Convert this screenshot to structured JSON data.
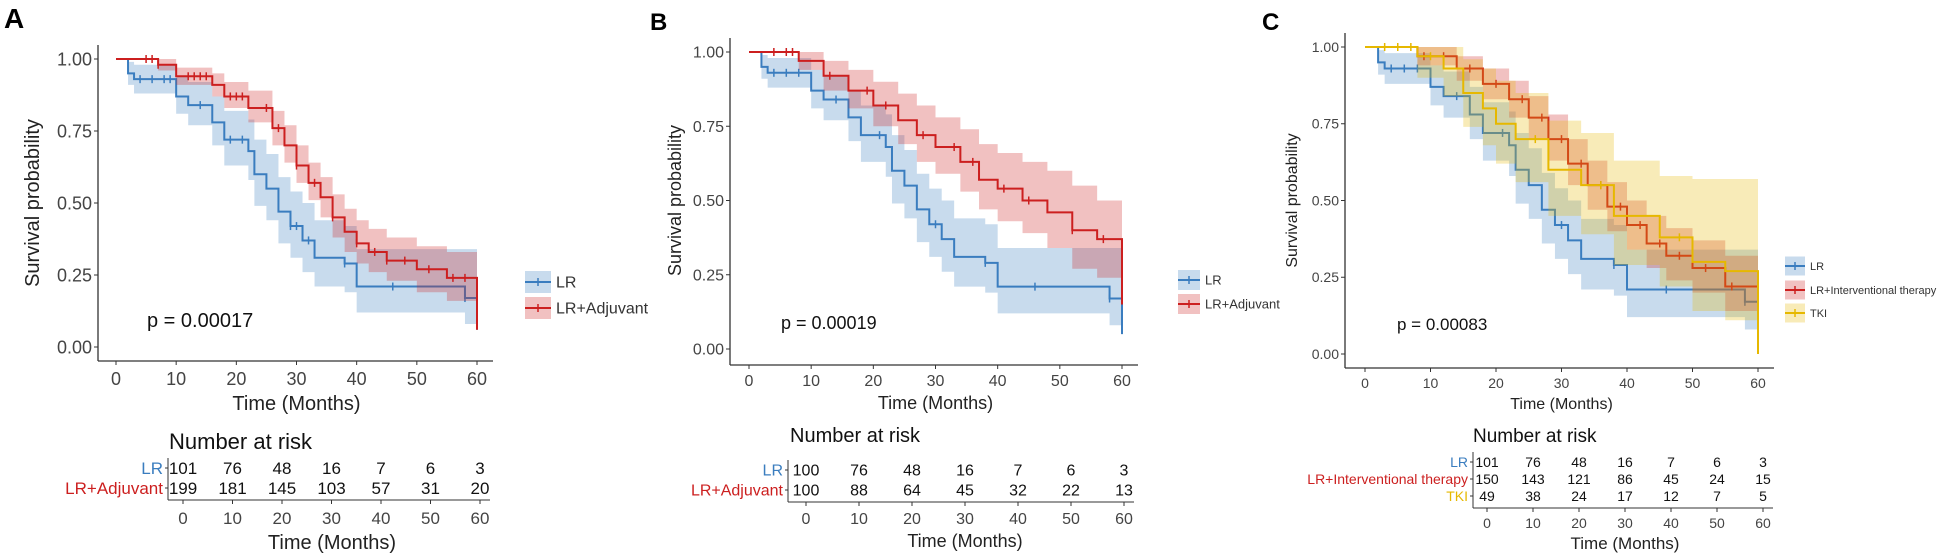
{
  "colors": {
    "LR": "#3a7dbf",
    "LR+Adjuvant": "#cc1f1f",
    "LR+Interventional therapy": "#cc1f1f",
    "TKI": "#e6b800",
    "axis": "#333333"
  },
  "chart_data": [
    {
      "type": "line",
      "panel_label": "A",
      "ylabel": "Survival probability",
      "xlabel": "Time (Months)",
      "xlim": [
        0,
        60
      ],
      "ylim": [
        0,
        1
      ],
      "xticks": [
        "0",
        "10",
        "20",
        "30",
        "40",
        "50",
        "60"
      ],
      "yticks": [
        "0.00",
        "0.25",
        "0.50",
        "0.75",
        "1.00"
      ],
      "grid": false,
      "legend": "right",
      "pvalue": "p = 0.00017",
      "series": [
        {
          "name": "LR",
          "x": [
            0,
            2,
            3,
            10,
            12,
            16,
            18,
            22,
            23,
            25,
            27,
            29,
            31,
            33,
            38,
            40,
            58,
            60
          ],
          "y": [
            1,
            0.95,
            0.93,
            0.87,
            0.84,
            0.78,
            0.72,
            0.68,
            0.6,
            0.55,
            0.47,
            0.42,
            0.37,
            0.31,
            0.29,
            0.21,
            0.17,
            0.06
          ],
          "lower": [
            1,
            0.91,
            0.88,
            0.81,
            0.77,
            0.7,
            0.63,
            0.58,
            0.49,
            0.44,
            0.36,
            0.31,
            0.26,
            0.21,
            0.19,
            0.12,
            0.08,
            0.01
          ],
          "upper": [
            1,
            0.99,
            0.98,
            0.94,
            0.92,
            0.87,
            0.82,
            0.79,
            0.72,
            0.67,
            0.59,
            0.54,
            0.5,
            0.44,
            0.42,
            0.34,
            0.34,
            0.34
          ],
          "censor": [
            4,
            6,
            8,
            9,
            14,
            19,
            21,
            29,
            30,
            32,
            38,
            46,
            58
          ]
        },
        {
          "name": "LR+Adjuvant",
          "x": [
            0,
            7,
            10,
            16,
            18,
            22,
            26,
            28,
            30,
            32,
            34,
            36,
            38,
            40,
            42,
            45,
            50,
            55,
            60
          ],
          "y": [
            1,
            0.98,
            0.94,
            0.91,
            0.87,
            0.83,
            0.76,
            0.7,
            0.63,
            0.57,
            0.52,
            0.45,
            0.4,
            0.36,
            0.33,
            0.3,
            0.27,
            0.24,
            0.06
          ],
          "lower": [
            1,
            0.96,
            0.91,
            0.87,
            0.83,
            0.78,
            0.7,
            0.64,
            0.57,
            0.51,
            0.45,
            0.38,
            0.33,
            0.29,
            0.26,
            0.23,
            0.19,
            0.16,
            0.01
          ],
          "upper": [
            1,
            1,
            0.97,
            0.95,
            0.92,
            0.89,
            0.82,
            0.77,
            0.7,
            0.64,
            0.59,
            0.53,
            0.48,
            0.44,
            0.41,
            0.38,
            0.35,
            0.33,
            0.33
          ],
          "censor": [
            5,
            6,
            7,
            12,
            13,
            14,
            15,
            19,
            20,
            21,
            25,
            27,
            30,
            33,
            36,
            40,
            43,
            45,
            48,
            52,
            56,
            58
          ]
        }
      ],
      "risk_table": {
        "title": "Number at risk",
        "xlabel": "Time (Months)",
        "rows": [
          {
            "label": "LR",
            "values": [
              "101",
              "76",
              "48",
              "16",
              "7",
              "6",
              "3"
            ]
          },
          {
            "label": "LR+Adjuvant",
            "values": [
              "199",
              "181",
              "145",
              "103",
              "57",
              "31",
              "20"
            ]
          }
        ]
      }
    },
    {
      "type": "line",
      "panel_label": "B",
      "ylabel": "Survival probability",
      "xlabel": "Time (Months)",
      "xlim": [
        0,
        60
      ],
      "ylim": [
        0,
        1
      ],
      "xticks": [
        "0",
        "10",
        "20",
        "30",
        "40",
        "50",
        "60"
      ],
      "yticks": [
        "0.00",
        "0.25",
        "0.50",
        "0.75",
        "1.00"
      ],
      "grid": false,
      "legend": "right",
      "pvalue": "p = 0.00019",
      "series": [
        {
          "name": "LR",
          "x": [
            0,
            2,
            3,
            10,
            12,
            16,
            18,
            22,
            23,
            25,
            27,
            29,
            31,
            33,
            38,
            40,
            58,
            60
          ],
          "y": [
            1,
            0.95,
            0.93,
            0.87,
            0.84,
            0.78,
            0.72,
            0.68,
            0.6,
            0.55,
            0.47,
            0.42,
            0.37,
            0.31,
            0.29,
            0.21,
            0.17,
            0.05
          ],
          "lower": [
            1,
            0.91,
            0.88,
            0.81,
            0.77,
            0.7,
            0.63,
            0.58,
            0.49,
            0.44,
            0.36,
            0.31,
            0.26,
            0.21,
            0.19,
            0.12,
            0.08,
            0.01
          ],
          "upper": [
            1,
            0.99,
            0.98,
            0.94,
            0.92,
            0.87,
            0.82,
            0.79,
            0.72,
            0.67,
            0.59,
            0.54,
            0.5,
            0.44,
            0.42,
            0.34,
            0.34,
            0.34
          ],
          "censor": [
            4,
            6,
            8,
            14,
            21,
            30,
            38,
            46,
            58
          ]
        },
        {
          "name": "LR+Adjuvant",
          "x": [
            0,
            8,
            12,
            16,
            20,
            24,
            27,
            30,
            34,
            37,
            40,
            44,
            48,
            52,
            56,
            60
          ],
          "y": [
            1,
            0.97,
            0.92,
            0.87,
            0.82,
            0.77,
            0.72,
            0.68,
            0.63,
            0.57,
            0.54,
            0.5,
            0.46,
            0.4,
            0.37,
            0.15
          ],
          "lower": [
            1,
            0.94,
            0.87,
            0.81,
            0.75,
            0.69,
            0.63,
            0.59,
            0.53,
            0.47,
            0.43,
            0.39,
            0.34,
            0.27,
            0.24,
            0.05
          ],
          "upper": [
            1,
            1,
            0.97,
            0.94,
            0.9,
            0.86,
            0.82,
            0.78,
            0.74,
            0.69,
            0.66,
            0.63,
            0.6,
            0.55,
            0.5,
            0.5
          ],
          "censor": [
            4,
            6,
            7,
            13,
            19,
            22,
            28,
            33,
            36,
            41,
            45,
            52,
            57
          ]
        }
      ],
      "risk_table": {
        "title": "Number at risk",
        "xlabel": "Time (Months)",
        "rows": [
          {
            "label": "LR",
            "values": [
              "100",
              "76",
              "48",
              "16",
              "7",
              "6",
              "3"
            ]
          },
          {
            "label": "LR+Adjuvant",
            "values": [
              "100",
              "88",
              "64",
              "45",
              "32",
              "22",
              "13"
            ]
          }
        ]
      }
    },
    {
      "type": "line",
      "panel_label": "C",
      "ylabel": "Survival probability",
      "xlabel": "Time (Months)",
      "xlim": [
        0,
        60
      ],
      "ylim": [
        0,
        1
      ],
      "xticks": [
        "0",
        "10",
        "20",
        "30",
        "40",
        "50",
        "60"
      ],
      "yticks": [
        "0.00",
        "0.25",
        "0.50",
        "0.75",
        "1.00"
      ],
      "grid": false,
      "legend": "right",
      "pvalue": "p = 0.00083",
      "series": [
        {
          "name": "LR",
          "x": [
            0,
            2,
            3,
            10,
            12,
            16,
            18,
            22,
            23,
            25,
            27,
            29,
            31,
            33,
            38,
            40,
            58,
            60
          ],
          "y": [
            1,
            0.95,
            0.93,
            0.87,
            0.84,
            0.78,
            0.72,
            0.68,
            0.6,
            0.55,
            0.47,
            0.42,
            0.37,
            0.31,
            0.29,
            0.21,
            0.17,
            0.06
          ],
          "lower": [
            1,
            0.91,
            0.88,
            0.81,
            0.77,
            0.7,
            0.63,
            0.58,
            0.49,
            0.44,
            0.36,
            0.31,
            0.26,
            0.21,
            0.19,
            0.12,
            0.08,
            0.01
          ],
          "upper": [
            1,
            0.99,
            0.98,
            0.94,
            0.92,
            0.87,
            0.82,
            0.79,
            0.72,
            0.67,
            0.59,
            0.54,
            0.5,
            0.44,
            0.42,
            0.34,
            0.34,
            0.34
          ],
          "censor": [
            4,
            6,
            8,
            14,
            21,
            30,
            38,
            46,
            58
          ]
        },
        {
          "name": "LR+Interventional therapy",
          "x": [
            0,
            8,
            14,
            18,
            22,
            25,
            28,
            31,
            34,
            37,
            40,
            43,
            46,
            50,
            55,
            60
          ],
          "y": [
            1,
            0.97,
            0.93,
            0.88,
            0.83,
            0.77,
            0.7,
            0.62,
            0.55,
            0.48,
            0.42,
            0.36,
            0.32,
            0.28,
            0.22,
            0.08
          ],
          "lower": [
            1,
            0.94,
            0.89,
            0.83,
            0.77,
            0.7,
            0.63,
            0.55,
            0.47,
            0.4,
            0.34,
            0.28,
            0.24,
            0.2,
            0.14,
            0.02
          ],
          "upper": [
            1,
            1,
            0.97,
            0.93,
            0.89,
            0.84,
            0.78,
            0.7,
            0.63,
            0.56,
            0.5,
            0.45,
            0.41,
            0.37,
            0.32,
            0.32
          ],
          "censor": [
            5,
            9,
            12,
            16,
            20,
            24,
            27,
            30,
            33,
            36,
            39,
            42,
            45,
            48,
            52,
            56,
            60
          ]
        },
        {
          "name": "TKI",
          "x": [
            0,
            8,
            12,
            15,
            18,
            20,
            23,
            28,
            33,
            38,
            45,
            50,
            55,
            60
          ],
          "y": [
            1,
            0.97,
            0.93,
            0.85,
            0.8,
            0.75,
            0.7,
            0.6,
            0.55,
            0.45,
            0.38,
            0.3,
            0.27,
            0.0
          ],
          "lower": [
            1,
            0.9,
            0.84,
            0.74,
            0.68,
            0.62,
            0.56,
            0.45,
            0.39,
            0.29,
            0.22,
            0.14,
            0.11,
            0.0
          ],
          "upper": [
            1,
            1,
            1,
            0.96,
            0.93,
            0.89,
            0.85,
            0.76,
            0.72,
            0.63,
            0.58,
            0.57,
            0.57,
            0.57
          ],
          "censor": [
            3,
            5,
            7,
            10,
            26,
            36,
            48
          ]
        }
      ],
      "risk_table": {
        "title": "Number at risk",
        "xlabel": "Time (Months)",
        "rows": [
          {
            "label": "LR",
            "values": [
              "101",
              "76",
              "48",
              "16",
              "7",
              "6",
              "3"
            ]
          },
          {
            "label": "LR+Interventional therapy",
            "values": [
              "150",
              "143",
              "121",
              "86",
              "45",
              "24",
              "15"
            ]
          },
          {
            "label": "TKI",
            "values": [
              "49",
              "38",
              "24",
              "17",
              "12",
              "7",
              "5"
            ]
          }
        ]
      }
    }
  ]
}
